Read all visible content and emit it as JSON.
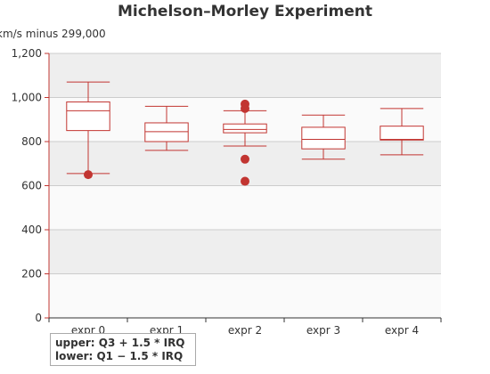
{
  "chart_data": {
    "type": "boxplot",
    "title": "Michelson–Morley Experiment",
    "ylabel": "km/s minus 299,000",
    "ylim": [
      0,
      1200
    ],
    "yticks": [
      0,
      200,
      400,
      600,
      800,
      1000,
      1200
    ],
    "ytick_labels": [
      "0",
      "200",
      "400",
      "600",
      "800",
      "1,000",
      "1,200"
    ],
    "categories": [
      "expr 0",
      "expr 1",
      "expr 2",
      "expr 3",
      "expr 4"
    ],
    "boxes": [
      {
        "min": 655,
        "q1": 850,
        "median": 940,
        "q3": 980,
        "max": 1070
      },
      {
        "min": 760,
        "q1": 800,
        "median": 845,
        "q3": 885,
        "max": 960
      },
      {
        "min": 780,
        "q1": 840,
        "median": 855,
        "q3": 880,
        "max": 940
      },
      {
        "min": 720,
        "q1": 767,
        "median": 810,
        "q3": 865,
        "max": 920
      },
      {
        "min": 740,
        "q1": 807,
        "median": 810,
        "q3": 870,
        "max": 950
      }
    ],
    "outliers": [
      {
        "category": "expr 0",
        "value": 650
      },
      {
        "category": "expr 2",
        "value": 970
      },
      {
        "category": "expr 2",
        "value": 950
      },
      {
        "category": "expr 2",
        "value": 720
      },
      {
        "category": "expr 2",
        "value": 620
      }
    ],
    "grid": true,
    "colors": {
      "box": "#c23531",
      "outlier": "#c23531",
      "band": "#eeeeee",
      "band_alt": "#fafafa"
    },
    "annotation_lines": [
      "upper: Q3 + 1.5 * IRQ",
      "lower: Q1 − 1.5 * IRQ"
    ]
  }
}
